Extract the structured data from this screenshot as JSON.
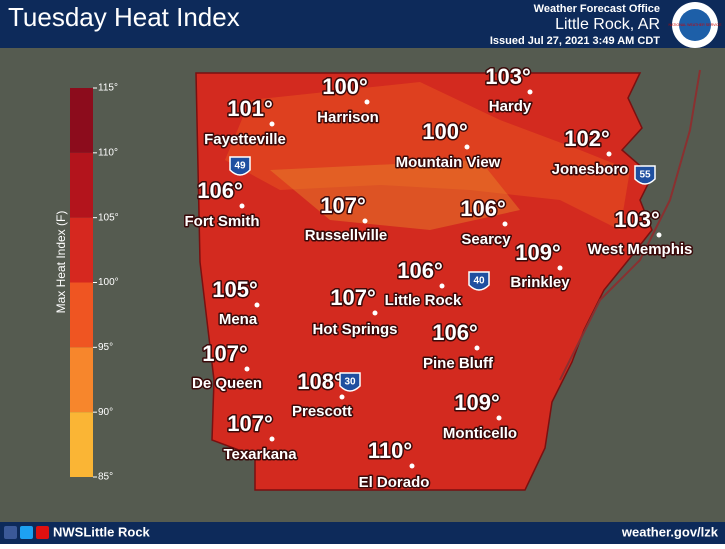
{
  "header": {
    "title": "Tuesday Heat Index",
    "office": "Weather Forecast Office",
    "location": "Little Rock, AR",
    "issued": "Issued Jul 27, 2021 3:49 AM CDT",
    "logo_text": "NATIONAL WEATHER SERVICE"
  },
  "legend": {
    "axis_label": "Max Heat Index (F)",
    "ylim": [
      85,
      115
    ],
    "ticks": [
      {
        "value": 115,
        "label": "115°"
      },
      {
        "value": 110,
        "label": "110°"
      },
      {
        "value": 105,
        "label": "105°"
      },
      {
        "value": 100,
        "label": "100°"
      },
      {
        "value": 95,
        "label": "95°"
      },
      {
        "value": 90,
        "label": "90°"
      },
      {
        "value": 85,
        "label": "85°"
      }
    ],
    "band_colors": [
      "#8c0c1c",
      "#b3141c",
      "#d6281f",
      "#ef5522",
      "#f7862c",
      "#fab535"
    ]
  },
  "cities": [
    {
      "name": "Fayetteville",
      "temp": {
        "value": 101,
        "label": "101°"
      }
    },
    {
      "name": "Harrison",
      "temp": {
        "value": 100,
        "label": "100°"
      }
    },
    {
      "name": "Hardy",
      "temp": {
        "value": 103,
        "label": "103°"
      }
    },
    {
      "name": "Mountain View",
      "temp": {
        "value": 100,
        "label": "100°"
      }
    },
    {
      "name": "Jonesboro",
      "temp": {
        "value": 102,
        "label": "102°"
      }
    },
    {
      "name": "Fort Smith",
      "temp": {
        "value": 106,
        "label": "106°"
      }
    },
    {
      "name": "Russellville",
      "temp": {
        "value": 107,
        "label": "107°"
      }
    },
    {
      "name": "Searcy",
      "temp": {
        "value": 106,
        "label": "106°"
      }
    },
    {
      "name": "West Memphis",
      "temp": {
        "value": 103,
        "label": "103°"
      }
    },
    {
      "name": "Brinkley",
      "temp": {
        "value": 109,
        "label": "109°"
      }
    },
    {
      "name": "Little Rock",
      "temp": {
        "value": 106,
        "label": "106°"
      }
    },
    {
      "name": "Mena",
      "temp": {
        "value": 105,
        "label": "105°"
      }
    },
    {
      "name": "Hot Springs",
      "temp": {
        "value": 107,
        "label": "107°"
      }
    },
    {
      "name": "Pine Bluff",
      "temp": {
        "value": 106,
        "label": "106°"
      }
    },
    {
      "name": "De Queen",
      "temp": {
        "value": 107,
        "label": "107°"
      }
    },
    {
      "name": "Prescott",
      "temp": {
        "value": 108,
        "label": "108°"
      }
    },
    {
      "name": "Monticello",
      "temp": {
        "value": 109,
        "label": "109°"
      }
    },
    {
      "name": "Texarkana",
      "temp": {
        "value": 107,
        "label": "107°"
      }
    },
    {
      "name": "El Dorado",
      "temp": {
        "value": 110,
        "label": "110°"
      }
    }
  ],
  "interstates": [
    "49",
    "55",
    "40",
    "30"
  ],
  "footer": {
    "handle": "NWSLittle Rock",
    "url": "weather.gov/lzk"
  }
}
